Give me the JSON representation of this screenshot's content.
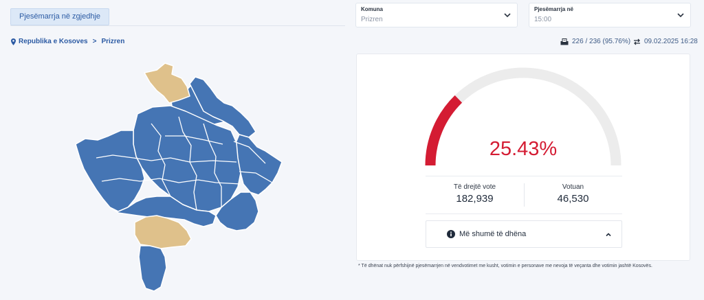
{
  "tabs": [
    {
      "label": "Pjesëmarrja në zgjedhje"
    }
  ],
  "filters": {
    "municipality": {
      "label": "Komuna",
      "value": "Prizren"
    },
    "time": {
      "label": "Pjesëmarrja në",
      "value": "15:00"
    }
  },
  "breadcrumb": {
    "root": "Republika e Kosoves",
    "separator": ">",
    "current": "Prizren"
  },
  "stations": {
    "text": "226 / 236 (95.76%)"
  },
  "updated": {
    "text": "09.02.2025 16:28"
  },
  "turnout": {
    "percent_text": "25.43%",
    "fraction": 0.2543
  },
  "stats": {
    "eligible": {
      "label": "Të drejtë vote",
      "value": "182,939"
    },
    "voted": {
      "label": "Votuan",
      "value": "46,530"
    }
  },
  "more": {
    "label": "Më shumë të dhëna"
  },
  "footnote": "* Të dhënat nuk përfshijnë pjesëmarrjen në vendvotimet me kusht, votimin e personave me nevoja të veçanta dhe votimin jashtë Kosovës.",
  "colors": {
    "accent": "#d41c33",
    "map_blue": "#4575b4",
    "map_highlight": "#dfc18b",
    "gauge_track": "#ececec"
  }
}
